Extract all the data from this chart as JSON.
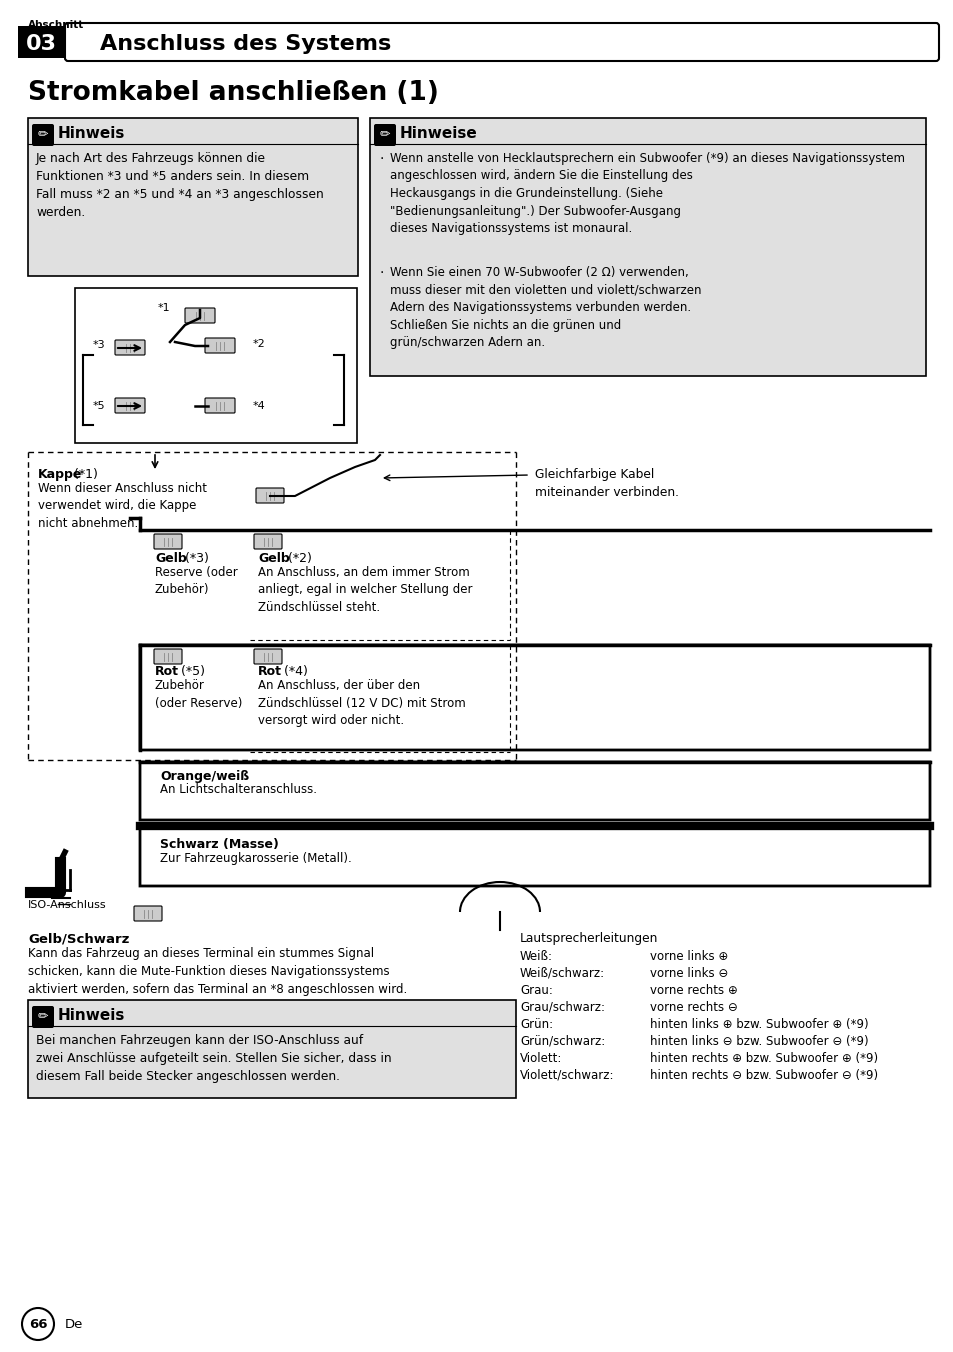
{
  "page_bg": "#ffffff",
  "section_label": "Abschnitt",
  "section_num": "03",
  "section_title": "Anschluss des Systems",
  "page_title": "Stromkabel anschließen (1)",
  "note1_title": "Hinweis",
  "note1_text": "Je nach Art des Fahrzeugs können die\nFunktionen *3 und *5 anders sein. In diesem\nFall muss *2 an *5 und *4 an *3 angeschlossen\nwerden.",
  "note2_title": "Hinweise",
  "note2_bullet1": "Wenn anstelle von Hecklautsprechern ein Subwoofer (*9) an dieses Navigationssystem\nangeschlossen wird, ändern Sie die Einstellung des\nHeckausgangs in die Grundeinstellung. (Siehe\n\"Bedienungsanleitung\".) Der Subwoofer-Ausgang\ndieses Navigationssystems ist monaural.",
  "note2_bullet2": "Wenn Sie einen 70 W-Subwoofer (2 Ω) verwenden,\nmuss dieser mit den violetten und violett/schwarzen\nAdern des Navigationssystems verbunden werden.\nSchließen Sie nichts an die grünen und\ngrün/schwarzen Adern an.",
  "dashed_label": "Gleichfarbige Kabel\nmiteinander verbinden.",
  "kappe_bold": "Kappe",
  "kappe_ref": " (*1)",
  "kappe_text": "Wenn dieser Anschluss nicht\nverwendet wird, die Kappe\nnicht abnehmen.",
  "gelb3_bold": "Gelb",
  "gelb3_ref": " (*3)",
  "gelb3_text": "Reserve (oder\nZubehör)",
  "gelb2_bold": "Gelb",
  "gelb2_ref": " (*2)",
  "gelb2_text": "An Anschluss, an dem immer Strom\nanliegt, egal in welcher Stellung der\nZündschlüssel steht.",
  "rot5_bold": "Rot",
  "rot5_ref": " (*5)",
  "rot5_text": "Zubehör\n(oder Reserve)",
  "rot4_bold": "Rot",
  "rot4_ref": " (*4)",
  "rot4_text": "An Anschluss, der über den\nZündschlüssel (12 V DC) mit Strom\nversorgt wird oder nicht.",
  "orange_bold": "Orange/weiß",
  "orange_text": "An Lichtschalteranschluss.",
  "schwarz_bold": "Schwarz (Masse)",
  "schwarz_text": "Zur Fahrzeugkarosserie (Metall).",
  "iso_label": "ISO-Anschluss",
  "gelb_schwarz_bold": "Gelb/Schwarz",
  "gelb_schwarz_text": "Kann das Fahrzeug an dieses Terminal ein stummes Signal\nschicken, kann die Mute-Funktion dieses Navigationssystems\naktiviert werden, sofern das Terminal an *8 angeschlossen wird.",
  "lautsprecher_title": "Lautsprecherleitungen",
  "lautsprecher_col1": [
    "Weiß:",
    "Weiß/schwarz:",
    "Grau:",
    "Grau/schwarz:",
    "Grün:",
    "Grün/schwarz:",
    "Violett:",
    "Violett/schwarz:"
  ],
  "lautsprecher_col2": [
    "vorne links ⊕",
    "vorne links ⊖",
    "vorne rechts ⊕",
    "vorne rechts ⊖",
    "hinten links ⊕ bzw. Subwoofer ⊕ (*9)",
    "hinten links ⊖ bzw. Subwoofer ⊖ (*9)",
    "hinten rechts ⊕ bzw. Subwoofer ⊕ (*9)",
    "hinten rechts ⊖ bzw. Subwoofer ⊖ (*9)"
  ],
  "note3_title": "Hinweis",
  "note3_text": "Bei manchen Fahrzeugen kann der ISO-Anschluss auf\nzwei Anschlüsse aufgeteilt sein. Stellen Sie sicher, dass in\ndiesem Fall beide Stecker angeschlossen werden.",
  "page_num": "66",
  "page_lang": "De"
}
